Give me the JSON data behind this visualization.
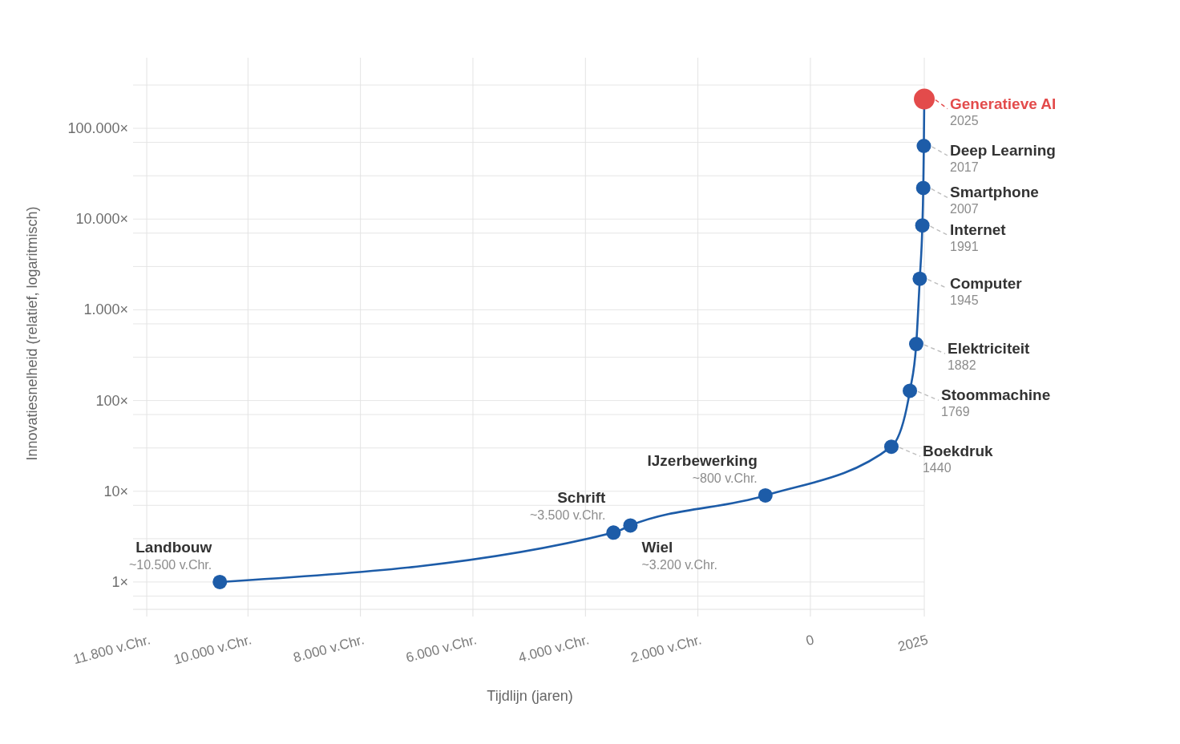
{
  "chart_data": {
    "type": "line",
    "xlabel": "Tijdlijn (jaren)",
    "ylabel": "Innovatiesnelheid (relatief, logaritmisch)",
    "x": [
      -10500,
      -3500,
      -3200,
      -800,
      1440,
      1769,
      1882,
      1945,
      1991,
      2007,
      2017,
      2025
    ],
    "series": [
      {
        "color": "#1d5ca8",
        "colors": [
          "#1d5ca8",
          "#1d5ca8",
          "#1d5ca8",
          "#1d5ca8",
          "#1d5ca8",
          "#1d5ca8",
          "#1d5ca8",
          "#1d5ca8",
          "#1d5ca8",
          "#1d5ca8",
          "#1d5ca8",
          "#e34b4b"
        ],
        "values": [
          1,
          3.5,
          4.2,
          9,
          31,
          128,
          420,
          2200,
          8500,
          22000,
          64000,
          210000
        ]
      }
    ],
    "xlim": [
      -12000,
      2025
    ],
    "xticks": [
      {
        "value": -11800,
        "label": "11.800 v.Chr."
      },
      {
        "value": -10000,
        "label": "10.000 v.Chr."
      },
      {
        "value": -8000,
        "label": "8.000 v.Chr."
      },
      {
        "value": -6000,
        "label": "6.000 v.Chr."
      },
      {
        "value": -4000,
        "label": "4.000 v.Chr."
      },
      {
        "value": -2000,
        "label": "2.000 v.Chr."
      },
      0,
      2025
    ],
    "ylim": [
      0.5,
      600000
    ],
    "yticks": [
      {
        "value": 0.7,
        "label": null
      },
      {
        "value": 1,
        "label": "1×"
      },
      {
        "value": 3,
        "label": null
      },
      {
        "value": 7,
        "label": null
      },
      {
        "value": 10,
        "label": "10×"
      },
      {
        "value": 30,
        "label": null
      },
      {
        "value": 70,
        "label": null
      },
      {
        "value": 100,
        "label": "100×"
      },
      {
        "value": 300,
        "label": null
      },
      {
        "value": 700,
        "label": null
      },
      {
        "value": 1000,
        "label": "1.000×"
      },
      {
        "value": 3000,
        "label": null
      },
      {
        "value": 7000,
        "label": null
      },
      {
        "value": 10000,
        "label": "10.000×"
      },
      {
        "value": 30000,
        "label": null
      },
      {
        "value": 70000,
        "label": null
      },
      {
        "value": 100000,
        "label": "100.000×"
      },
      {
        "value": 300000,
        "label": null
      }
    ],
    "log": "y",
    "grid": true,
    "marker": "circle",
    "line_style": "solid",
    "annotations": [
      {
        "text": "Landbouw",
        "x": -10500,
        "y": 1
      },
      {
        "text": "~10.500 v.Chr.",
        "x": -10500,
        "y": 1
      },
      {
        "text": "Schrift",
        "x": -3500,
        "y": 3.5
      },
      {
        "text": "~3.500 v.Chr.",
        "x": -3500,
        "y": 3.5
      },
      {
        "text": "Wiel",
        "x": -3200,
        "y": 4.2
      },
      {
        "text": "~3.200 v.Chr.",
        "x": -3200,
        "y": 4.2
      },
      {
        "text": "IJzerbewerking",
        "x": -800,
        "y": 9
      },
      {
        "text": "~800 v.Chr.",
        "x": -800,
        "y": 9
      },
      {
        "text": "Boekdruk",
        "x": 1440,
        "y": 31
      },
      {
        "text": "1440",
        "x": 1440,
        "y": 31
      },
      {
        "text": "Stoommachine",
        "x": 1769,
        "y": 128
      },
      {
        "text": "1769",
        "x": 1769,
        "y": 128
      },
      {
        "text": "Elektriciteit",
        "x": 1882,
        "y": 420
      },
      {
        "text": "1882",
        "x": 1882,
        "y": 420
      },
      {
        "text": "Computer",
        "x": 1945,
        "y": 2200
      },
      {
        "text": "1945",
        "x": 1945,
        "y": 2200
      },
      {
        "text": "Internet",
        "x": 1991,
        "y": 8500
      },
      {
        "text": "1991",
        "x": 1991,
        "y": 8500
      },
      {
        "text": "Smartphone",
        "x": 2007,
        "y": 22000
      },
      {
        "text": "2007",
        "x": 2007,
        "y": 22000
      },
      {
        "text": "Deep Learning",
        "x": 2017,
        "y": 64000
      },
      {
        "text": "2017",
        "x": 2017,
        "y": 64000
      },
      {
        "text": "Generatieve AI",
        "x": 2025,
        "y": 210000
      },
      {
        "text": "2025",
        "x": 2025,
        "y": 210000
      }
    ]
  }
}
